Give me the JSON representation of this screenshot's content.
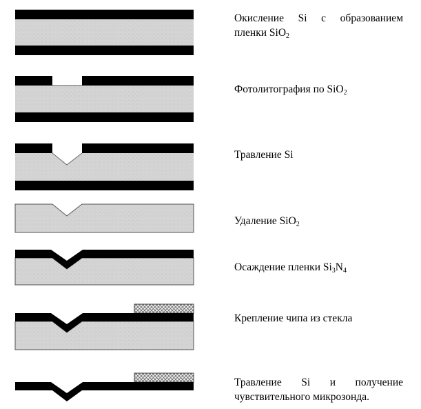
{
  "steps": [
    {
      "id": "oxidation",
      "lines": [
        "Окисление Si с образованием",
        "пленки SiO",
        "2"
      ]
    },
    {
      "id": "photolitho",
      "parts": [
        "Фотолитография по SiO",
        "2"
      ]
    },
    {
      "id": "etch-si",
      "parts": [
        "Травление Si"
      ]
    },
    {
      "id": "remove-sio2",
      "parts": [
        "Удаление SiO",
        "2"
      ]
    },
    {
      "id": "deposit-si3n4",
      "parts": [
        "Осаждение пленки Si",
        "3",
        "N",
        "4"
      ]
    },
    {
      "id": "attach-glass",
      "parts": [
        "Крепление чипа из стекла"
      ]
    },
    {
      "id": "final-etch",
      "lines": [
        "Травление Si и получение",
        "чувствительного микрозонда."
      ]
    }
  ],
  "colors": {
    "film": "#000000",
    "silicon": "#d4d4d4",
    "silicon_border": "#555555",
    "glass_pattern": "#666666",
    "glass_bg": "#eeeeee"
  }
}
